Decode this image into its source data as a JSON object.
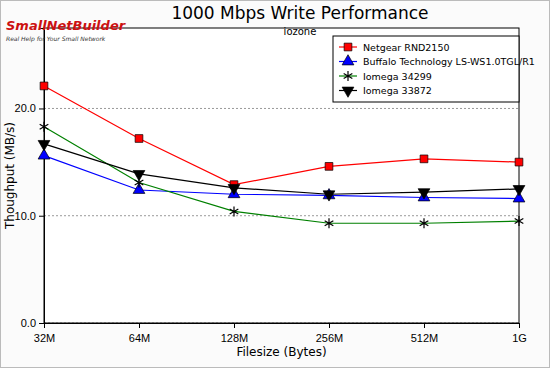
{
  "chart_data": {
    "type": "line",
    "title": "1000 Mbps Write Performance",
    "subtitle": "iozone",
    "annotations": [
      "SmallNetBuilder",
      "Real Help for Your Small Network"
    ],
    "x_label": "Filesize (Bytes)",
    "y_label": "Thoughput (MB/s)",
    "categories": [
      "32M",
      "64M",
      "128M",
      "256M",
      "512M",
      "1G"
    ],
    "series": [
      {
        "name": "Netgear RND2150",
        "color": "#ff0000",
        "marker": "square",
        "values": [
          22.1,
          17.2,
          12.9,
          14.6,
          15.3,
          15.0
        ]
      },
      {
        "name": "Buffalo Technology LS-WS1.0TGL/R1",
        "color": "#0000ff",
        "marker": "triangle",
        "values": [
          15.6,
          12.4,
          12.0,
          11.9,
          11.7,
          11.6
        ]
      },
      {
        "name": "Iomega 34299",
        "color": "#008000",
        "marker": "asterisk",
        "values": [
          18.3,
          13.1,
          10.4,
          9.3,
          9.3,
          9.5
        ]
      },
      {
        "name": "Iomega 33872",
        "color": "#000000",
        "marker": "triangle-down",
        "values": [
          16.7,
          13.9,
          12.6,
          12.0,
          12.2,
          12.5
        ]
      }
    ],
    "ylim": [
      0,
      27.5
    ],
    "yticks": [
      {
        "value": 0,
        "label": "0.0"
      },
      {
        "value": 10,
        "label": "10.0"
      },
      {
        "value": 20,
        "label": "20.0"
      }
    ],
    "grid": true,
    "legend": "upper right"
  }
}
